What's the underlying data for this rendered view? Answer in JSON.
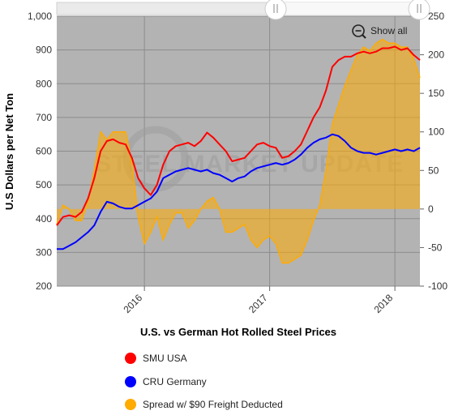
{
  "chart_data": {
    "type": "line",
    "title": "U.S. vs German Hot Rolled Steel Prices",
    "ylabel": "U.S Dollars per Net Ton",
    "ylim": [
      200,
      1000
    ],
    "y_ticks": [
      "200",
      "300",
      "400",
      "500",
      "600",
      "700",
      "800",
      "900",
      "1,000"
    ],
    "y2lim": [
      -100,
      250
    ],
    "y2_ticks": [
      "-100",
      "-50",
      "0",
      "50",
      "100",
      "150",
      "200",
      "250"
    ],
    "xlim": [
      2015.3,
      2018.2
    ],
    "x_ticks": [
      "2016",
      "2017",
      "2018"
    ],
    "grid": true,
    "legend_position": "bottom",
    "watermark": "STEEL MARKET UPDATE",
    "zoom_reset_label": "Show all",
    "series": [
      {
        "name": "SMU USA",
        "color": "#ff0000",
        "axis": "left",
        "x": [
          2015.3,
          2015.35,
          2015.4,
          2015.45,
          2015.5,
          2015.55,
          2015.6,
          2015.65,
          2015.7,
          2015.75,
          2015.8,
          2015.85,
          2015.9,
          2015.95,
          2016.0,
          2016.05,
          2016.1,
          2016.15,
          2016.2,
          2016.25,
          2016.3,
          2016.35,
          2016.4,
          2016.45,
          2016.5,
          2016.55,
          2016.6,
          2016.65,
          2016.7,
          2016.75,
          2016.8,
          2016.85,
          2016.9,
          2016.95,
          2017.0,
          2017.05,
          2017.1,
          2017.15,
          2017.2,
          2017.25,
          2017.3,
          2017.35,
          2017.4,
          2017.45,
          2017.5,
          2017.55,
          2017.6,
          2017.65,
          2017.7,
          2017.75,
          2017.8,
          2017.85,
          2017.9,
          2017.95,
          2018.0,
          2018.05,
          2018.1,
          2018.15,
          2018.2
        ],
        "values": [
          380,
          405,
          410,
          405,
          420,
          460,
          520,
          600,
          630,
          635,
          625,
          620,
          580,
          520,
          490,
          470,
          500,
          560,
          600,
          615,
          620,
          625,
          615,
          630,
          655,
          640,
          620,
          600,
          570,
          575,
          580,
          600,
          620,
          625,
          615,
          610,
          580,
          585,
          600,
          620,
          660,
          700,
          730,
          780,
          850,
          870,
          880,
          880,
          890,
          895,
          890,
          895,
          905,
          905,
          910,
          900,
          905,
          885,
          870
        ]
      },
      {
        "name": "CRU Germany",
        "color": "#0000ff",
        "axis": "left",
        "x": [
          2015.3,
          2015.35,
          2015.4,
          2015.45,
          2015.5,
          2015.55,
          2015.6,
          2015.65,
          2015.7,
          2015.75,
          2015.8,
          2015.85,
          2015.9,
          2015.95,
          2016.0,
          2016.05,
          2016.1,
          2016.15,
          2016.2,
          2016.25,
          2016.3,
          2016.35,
          2016.4,
          2016.45,
          2016.5,
          2016.55,
          2016.6,
          2016.65,
          2016.7,
          2016.75,
          2016.8,
          2016.85,
          2016.9,
          2016.95,
          2017.0,
          2017.05,
          2017.1,
          2017.15,
          2017.2,
          2017.25,
          2017.3,
          2017.35,
          2017.4,
          2017.45,
          2017.5,
          2017.55,
          2017.6,
          2017.65,
          2017.7,
          2017.75,
          2017.8,
          2017.85,
          2017.9,
          2017.95,
          2018.0,
          2018.05,
          2018.1,
          2018.15,
          2018.2
        ],
        "values": [
          310,
          310,
          320,
          330,
          345,
          360,
          380,
          420,
          450,
          445,
          435,
          430,
          430,
          440,
          450,
          460,
          480,
          520,
          530,
          540,
          545,
          550,
          545,
          540,
          545,
          535,
          530,
          520,
          510,
          520,
          525,
          540,
          550,
          555,
          560,
          565,
          560,
          565,
          575,
          590,
          610,
          625,
          635,
          640,
          650,
          645,
          630,
          610,
          600,
          595,
          595,
          590,
          595,
          600,
          605,
          600,
          605,
          600,
          610
        ]
      },
      {
        "name": "Spread w/ $90 Freight Deducted",
        "color": "#ffab00",
        "axis": "right",
        "x": [
          2015.3,
          2015.35,
          2015.4,
          2015.45,
          2015.5,
          2015.55,
          2015.6,
          2015.65,
          2015.7,
          2015.75,
          2015.8,
          2015.85,
          2015.9,
          2015.95,
          2016.0,
          2016.05,
          2016.1,
          2016.15,
          2016.2,
          2016.25,
          2016.3,
          2016.35,
          2016.4,
          2016.45,
          2016.5,
          2016.55,
          2016.6,
          2016.65,
          2016.7,
          2016.75,
          2016.8,
          2016.85,
          2016.9,
          2016.95,
          2017.0,
          2017.05,
          2017.1,
          2017.15,
          2017.2,
          2017.25,
          2017.3,
          2017.35,
          2017.4,
          2017.45,
          2017.5,
          2017.55,
          2017.6,
          2017.65,
          2017.7,
          2017.75,
          2017.8,
          2017.85,
          2017.9,
          2017.95,
          2018.0,
          2018.05,
          2018.1,
          2018.15,
          2018.2
        ],
        "values": [
          -20,
          5,
          0,
          -15,
          -15,
          10,
          50,
          100,
          90,
          100,
          100,
          100,
          60,
          -10,
          -45,
          -30,
          -10,
          -40,
          -20,
          -5,
          -5,
          -25,
          -15,
          0,
          10,
          15,
          0,
          -30,
          -30,
          -25,
          -20,
          -40,
          -50,
          -40,
          -35,
          -45,
          -70,
          -70,
          -65,
          -60,
          -40,
          -15,
          5,
          50,
          110,
          135,
          160,
          180,
          200,
          210,
          205,
          215,
          220,
          215,
          215,
          210,
          210,
          195,
          170
        ]
      }
    ]
  }
}
